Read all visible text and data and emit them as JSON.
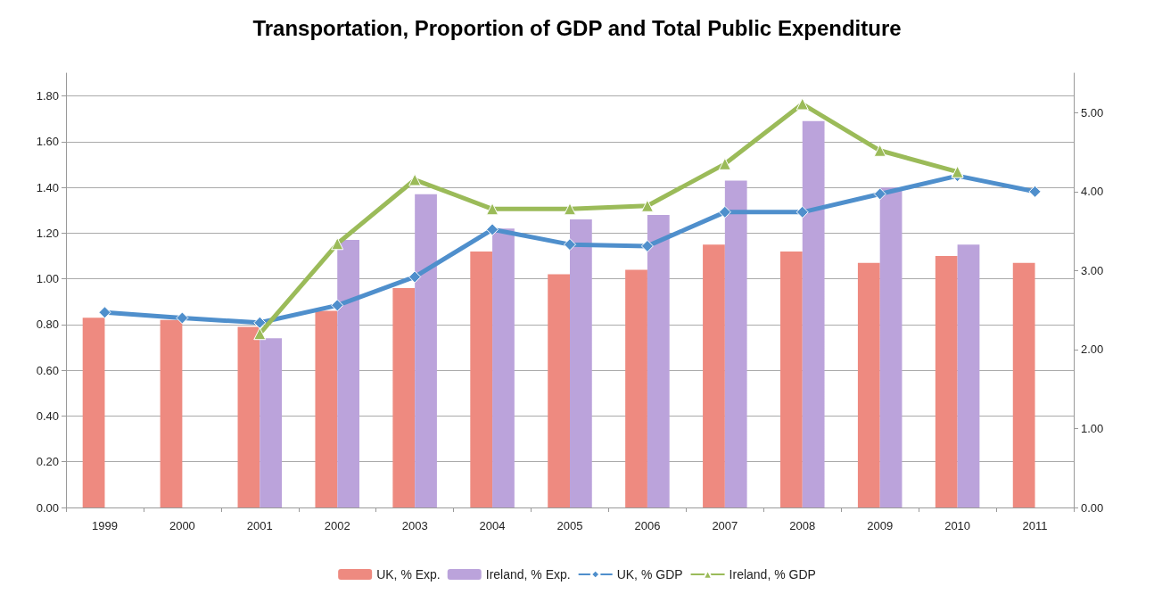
{
  "chart_data": {
    "type": "bar",
    "title": "Transportation, Proportion of GDP and Total Public Expenditure",
    "categories": [
      "1999",
      "2000",
      "2001",
      "2002",
      "2003",
      "2004",
      "2005",
      "2006",
      "2007",
      "2008",
      "2009",
      "2010",
      "2011"
    ],
    "series": [
      {
        "name": "UK, % Exp.",
        "color": "#ee8a80",
        "values": [
          0.83,
          0.82,
          0.79,
          0.86,
          0.96,
          1.12,
          1.02,
          1.04,
          1.15,
          1.12,
          1.07,
          1.1,
          1.07
        ]
      },
      {
        "name": "Ireland, % Exp.",
        "color": "#bba3db",
        "values": [
          null,
          null,
          0.74,
          1.17,
          1.37,
          1.22,
          1.26,
          1.28,
          1.43,
          1.69,
          1.4,
          1.15,
          null
        ]
      },
      {
        "name": "UK, % GDP",
        "type": "line",
        "axis": "y2",
        "marker": "diamond",
        "color": "#4f8fcc",
        "values": [
          2.47,
          2.4,
          2.34,
          2.56,
          2.92,
          3.52,
          3.33,
          3.31,
          3.74,
          3.74,
          3.97,
          4.2,
          4.0
        ]
      },
      {
        "name": "Ireland, % GDP",
        "type": "line",
        "axis": "y2",
        "marker": "triangle",
        "color": "#9bbb59",
        "values": [
          null,
          null,
          2.2,
          3.34,
          4.15,
          3.78,
          3.78,
          3.82,
          4.35,
          5.11,
          4.52,
          4.25,
          null
        ]
      }
    ],
    "ylim": [
      0,
      1.9
    ],
    "yticks": [
      {
        "value": 0,
        "label": "0.00"
      },
      {
        "value": 0.2,
        "label": "0.20"
      },
      {
        "value": 0.4,
        "label": "0.40"
      },
      {
        "value": 0.6,
        "label": "0.60"
      },
      {
        "value": 0.8,
        "label": "0.80"
      },
      {
        "value": 1.0,
        "label": "1.00"
      },
      {
        "value": 1.2,
        "label": "1.20"
      },
      {
        "value": 1.4,
        "label": "1.40"
      },
      {
        "value": 1.6,
        "label": "1.60"
      },
      {
        "value": 1.8,
        "label": "1.80"
      }
    ],
    "y2lim": [
      0,
      5.5
    ],
    "y2ticks": [
      {
        "value": 0,
        "label": "0.00"
      },
      {
        "value": 1,
        "label": "1.00"
      },
      {
        "value": 2,
        "label": "2.00"
      },
      {
        "value": 3,
        "label": "3.00"
      },
      {
        "value": 4,
        "label": "4.00"
      },
      {
        "value": 5,
        "label": "5.00"
      }
    ],
    "grid": "y",
    "legend": "bottom"
  }
}
